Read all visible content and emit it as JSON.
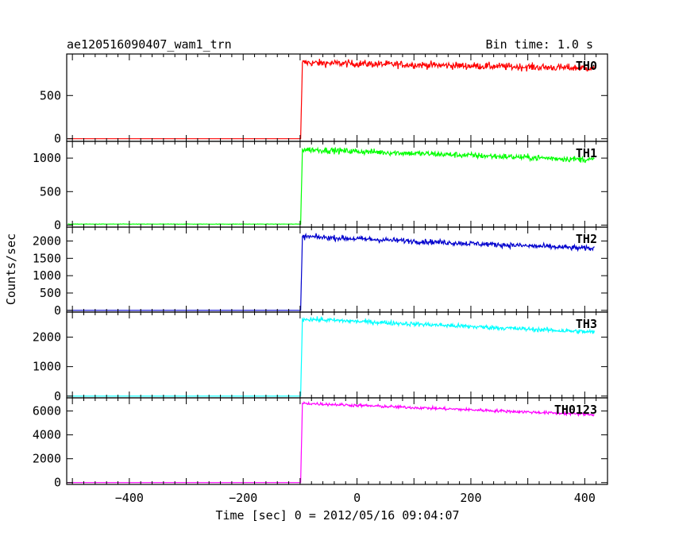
{
  "chart_data": {
    "type": "line",
    "title": "ae120516090407_wam1_trn",
    "subtitle": "Bin time: 1.0 s",
    "xlabel": "Time [sec] 0 = 2012/05/16 09:04:07",
    "ylabel": "Counts/sec",
    "xlim": [
      -510,
      440
    ],
    "x_ticks": [
      -400,
      -200,
      0,
      200,
      400
    ],
    "x_tick_labels": [
      "−400",
      "−200",
      "0",
      "200",
      "400"
    ],
    "x_step": 1.0,
    "grid": false,
    "series": [
      {
        "name": "TH0",
        "color": "#ff0000",
        "ylim": [
          -30,
          980
        ],
        "y_ticks": [
          0,
          500
        ],
        "y_tick_labels": [
          "0",
          "500"
        ],
        "pre_level": 0,
        "onset_x": -98,
        "peak_level": 880,
        "end_level": 815,
        "noise": 30
      },
      {
        "name": "TH1",
        "color": "#00ff00",
        "ylim": [
          -30,
          1250
        ],
        "y_ticks": [
          0,
          500,
          1000
        ],
        "y_tick_labels": [
          "0",
          "500",
          "1000"
        ],
        "pre_level": 15,
        "onset_x": -98,
        "peak_level": 1130,
        "end_level": 975,
        "noise": 32
      },
      {
        "name": "TH2",
        "color": "#0000cd",
        "ylim": [
          -50,
          2400
        ],
        "y_ticks": [
          0,
          500,
          1000,
          1500,
          2000
        ],
        "y_tick_labels": [
          "0",
          "500",
          "1000",
          "1500",
          "2000"
        ],
        "pre_level": 0,
        "onset_x": -98,
        "peak_level": 2130,
        "end_level": 1780,
        "noise": 55
      },
      {
        "name": "TH3",
        "color": "#00ffff",
        "ylim": [
          -60,
          2850
        ],
        "y_ticks": [
          0,
          1000,
          2000
        ],
        "y_tick_labels": [
          "0",
          "1000",
          "2000"
        ],
        "pre_level": 0,
        "onset_x": -98,
        "peak_level": 2620,
        "end_level": 2170,
        "noise": 55
      },
      {
        "name": "TH0123",
        "color": "#ff00ff",
        "ylim": [
          -150,
          7100
        ],
        "y_ticks": [
          0,
          2000,
          4000,
          6000
        ],
        "y_tick_labels": [
          "0",
          "2000",
          "4000",
          "6000"
        ],
        "pre_level": 0,
        "onset_x": -98,
        "peak_level": 6650,
        "end_level": 5700,
        "noise": 90
      }
    ]
  }
}
